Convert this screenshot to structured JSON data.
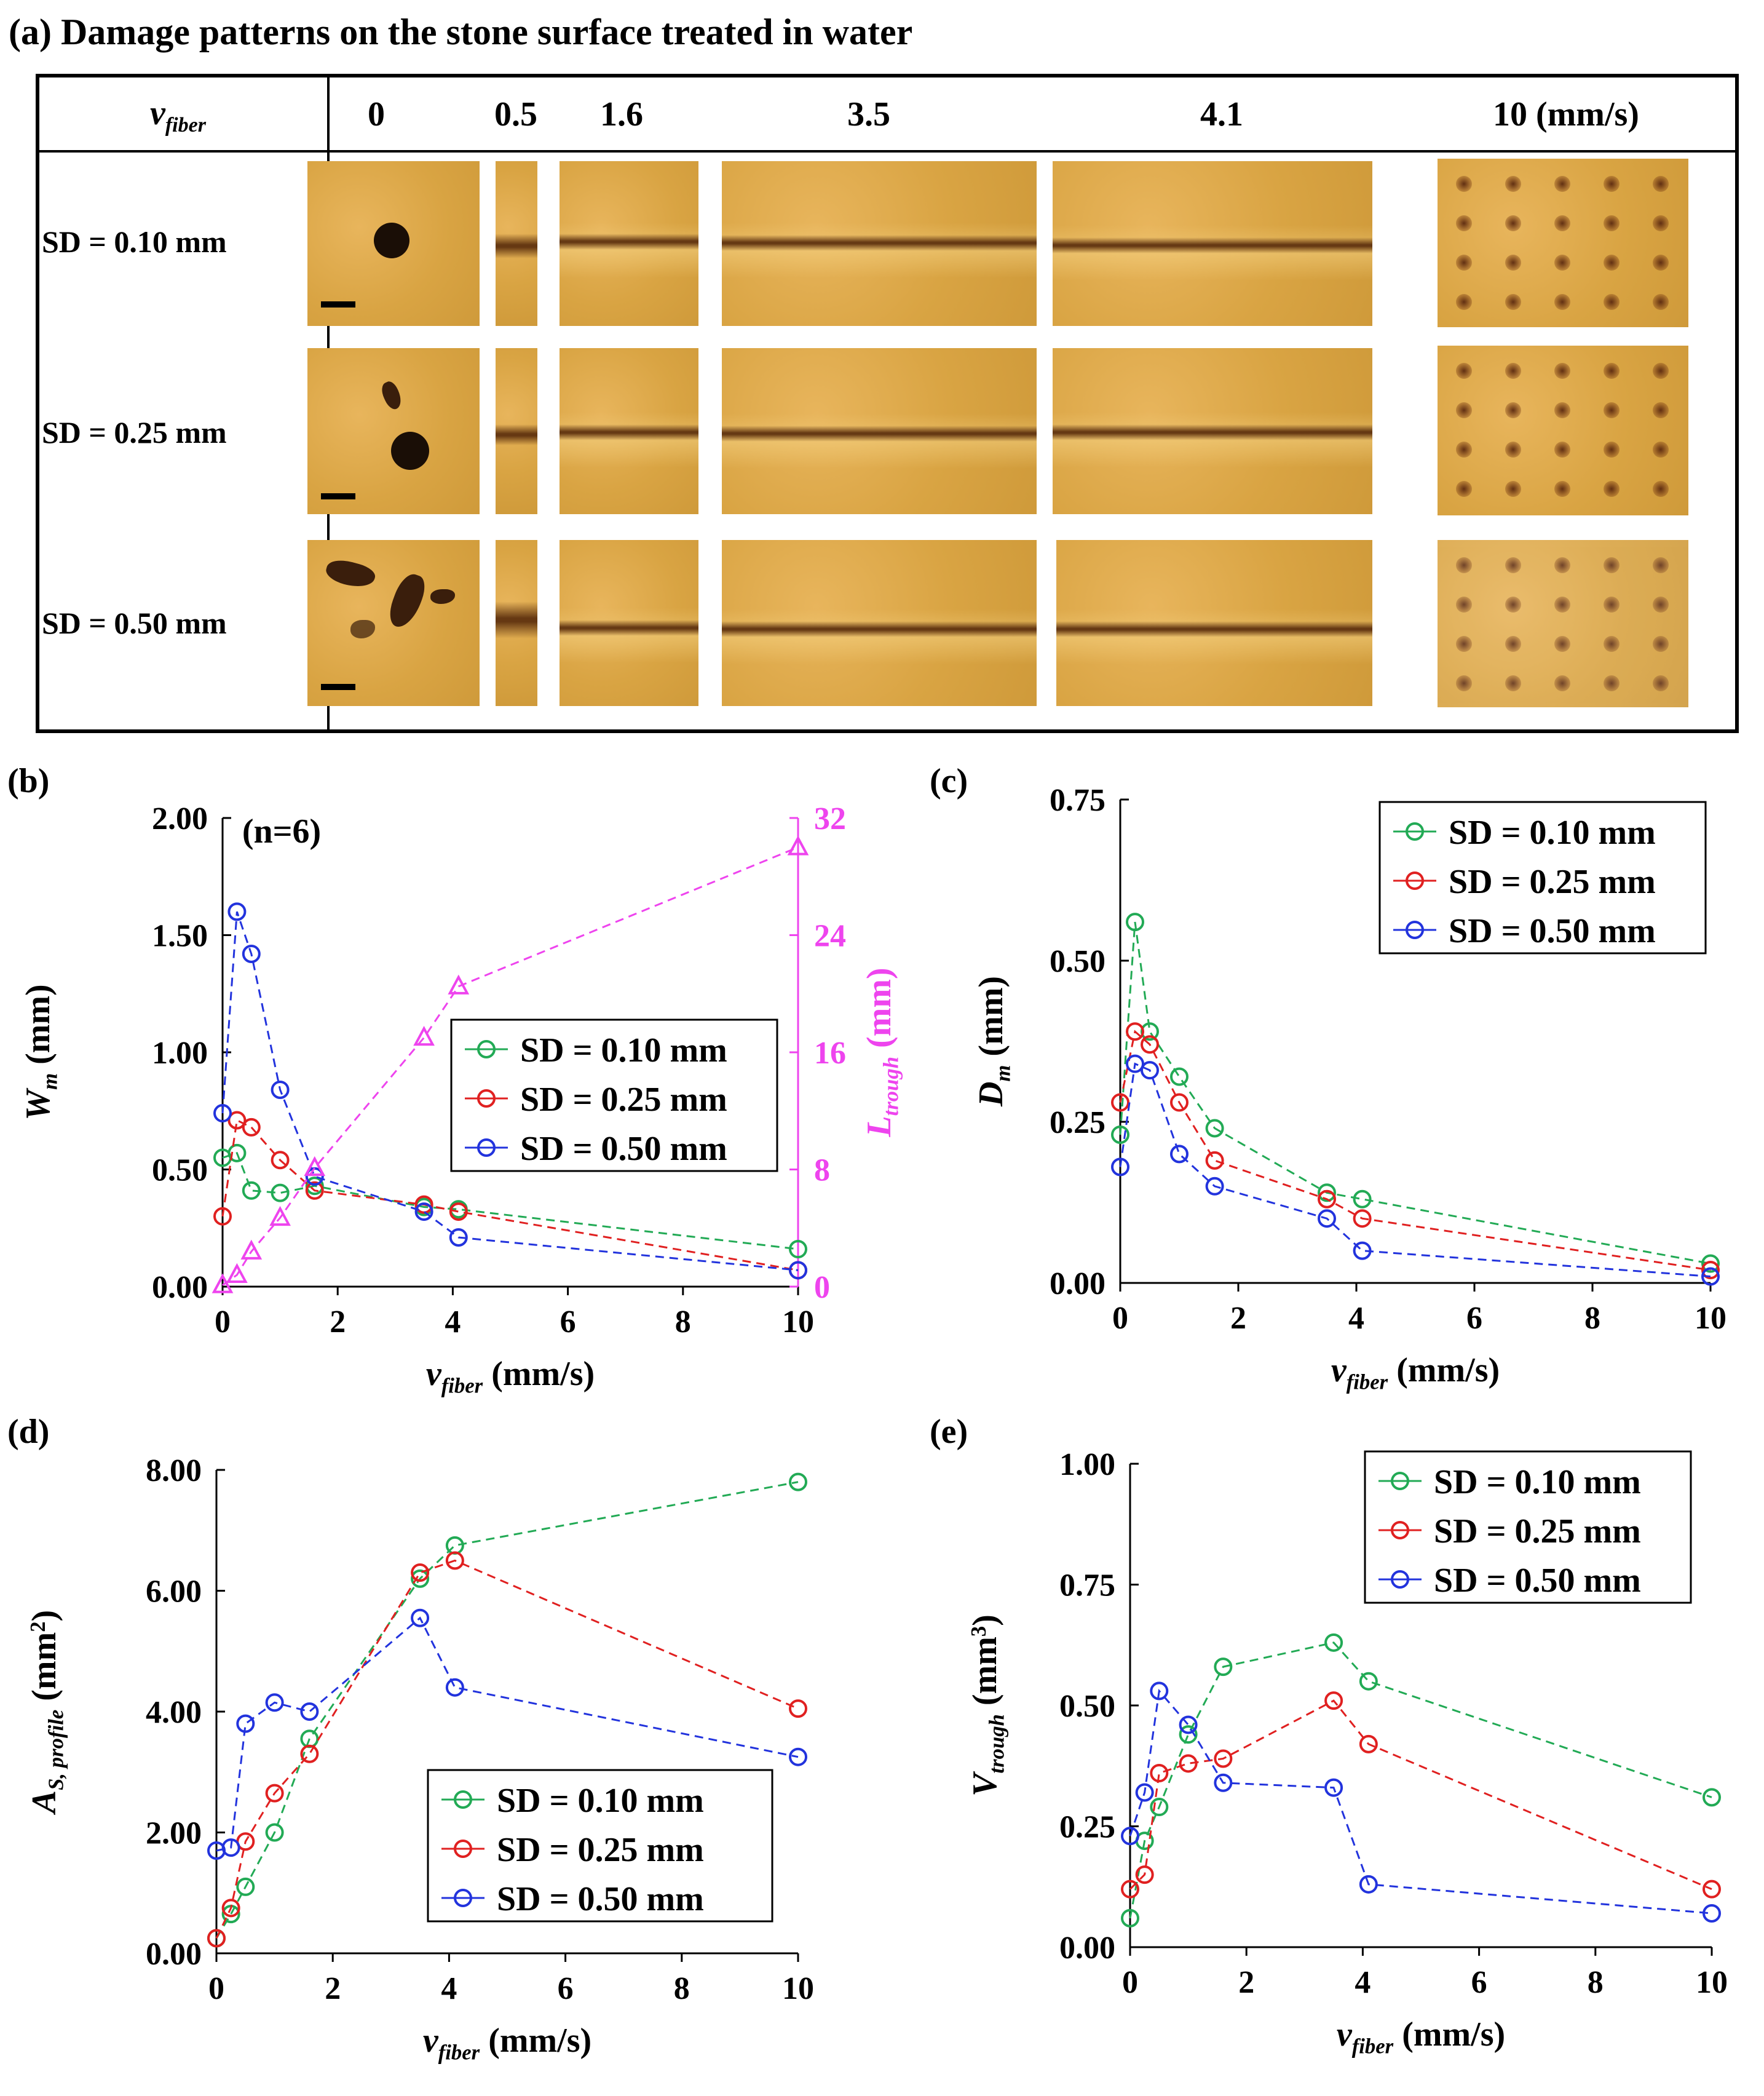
{
  "panel_a": {
    "title": "(a) Damage patterns on the stone surface treated in water",
    "col_header_symbol": "v",
    "col_header_sub": "fiber",
    "columns": [
      "0",
      "0.5",
      "1.6",
      "3.5",
      "4.1",
      "10 (mm/s)"
    ],
    "rows": [
      "SD = 0.10 mm",
      "SD = 0.25 mm",
      "SD = 0.50 mm"
    ]
  },
  "colors": {
    "green": "#22aa55",
    "red": "#e02020",
    "blue": "#2233dd",
    "magenta": "#ee44ee"
  },
  "chart_data": [
    {
      "panel": "(b)",
      "type": "line",
      "annotation": "(n=6)",
      "xlabel": "v",
      "xlabel_sub": "fiber",
      "xlabel_unit": " (mm/s)",
      "ylabel": "W",
      "ylabel_sub": "m",
      "ylabel_unit": " (mm)",
      "y2label": "L",
      "y2label_sub": "trough",
      "y2label_unit": " (mm)",
      "xlim": [
        0,
        10
      ],
      "ylim": [
        0,
        2
      ],
      "y2lim": [
        0,
        32
      ],
      "xticks": [
        "0",
        "2",
        "4",
        "6",
        "8",
        "10"
      ],
      "yticks": [
        "0.00",
        "0.50",
        "1.00",
        "1.50",
        "2.00"
      ],
      "y2ticks": [
        "0",
        "8",
        "16",
        "24",
        "32"
      ],
      "legend": [
        "SD = 0.10 mm",
        "SD = 0.25 mm",
        "SD = 0.50 mm"
      ],
      "x": [
        0,
        0.25,
        0.5,
        1,
        1.6,
        3.5,
        4.1,
        10
      ],
      "series": [
        {
          "name": "SD = 0.10 mm",
          "color": "green",
          "values": [
            0.55,
            0.57,
            0.41,
            0.4,
            0.43,
            0.34,
            0.33,
            0.16
          ]
        },
        {
          "name": "SD = 0.25 mm",
          "color": "red",
          "values": [
            0.3,
            0.71,
            0.68,
            0.54,
            0.41,
            0.35,
            0.32,
            0.07
          ]
        },
        {
          "name": "SD = 0.50 mm",
          "color": "blue",
          "values": [
            0.74,
            1.6,
            1.42,
            0.84,
            0.47,
            0.32,
            0.21,
            0.07
          ]
        }
      ],
      "series_right": {
        "name": "L trough",
        "color": "magenta",
        "marker": "triangle",
        "values": [
          0.1,
          0.8,
          2.4,
          4.7,
          8.1,
          17.0,
          20.5,
          30.0
        ]
      }
    },
    {
      "panel": "(c)",
      "type": "line",
      "xlabel": "v",
      "xlabel_sub": "fiber",
      "xlabel_unit": " (mm/s)",
      "ylabel": "D",
      "ylabel_sub": "m",
      "ylabel_unit": " (mm)",
      "xlim": [
        0,
        10
      ],
      "ylim": [
        0,
        0.75
      ],
      "xticks": [
        "0",
        "2",
        "4",
        "6",
        "8",
        "10"
      ],
      "yticks": [
        "0.00",
        "0.25",
        "0.50",
        "0.75"
      ],
      "legend": [
        "SD = 0.10 mm",
        "SD = 0.25 mm",
        "SD = 0.50 mm"
      ],
      "x": [
        0,
        0.25,
        0.5,
        1,
        1.6,
        3.5,
        4.1,
        10
      ],
      "series": [
        {
          "name": "SD = 0.10 mm",
          "color": "green",
          "values": [
            0.23,
            0.56,
            0.39,
            0.32,
            0.24,
            0.14,
            0.13,
            0.03
          ]
        },
        {
          "name": "SD = 0.25 mm",
          "color": "red",
          "values": [
            0.28,
            0.39,
            0.37,
            0.28,
            0.19,
            0.13,
            0.1,
            0.02
          ]
        },
        {
          "name": "SD = 0.50 mm",
          "color": "blue",
          "values": [
            0.18,
            0.34,
            0.33,
            0.2,
            0.15,
            0.1,
            0.05,
            0.01
          ]
        }
      ]
    },
    {
      "panel": "(d)",
      "type": "line",
      "xlabel": "v",
      "xlabel_sub": "fiber",
      "xlabel_unit": " (mm/s)",
      "ylabel": "A",
      "ylabel_sub": "S, profile",
      "ylabel_unit": " (mm",
      "ylabel_sup": "2",
      "ylabel_close": ")",
      "xlim": [
        0,
        10
      ],
      "ylim": [
        0,
        8
      ],
      "xticks": [
        "0",
        "2",
        "4",
        "6",
        "8",
        "10"
      ],
      "yticks": [
        "0.00",
        "2.00",
        "4.00",
        "6.00",
        "8.00"
      ],
      "legend": [
        "SD = 0.10 mm",
        "SD = 0.25 mm",
        "SD = 0.50 mm"
      ],
      "x": [
        0,
        0.25,
        0.5,
        1,
        1.6,
        3.5,
        4.1,
        10
      ],
      "series": [
        {
          "name": "SD = 0.10 mm",
          "color": "green",
          "values": [
            0.25,
            0.65,
            1.1,
            2.0,
            3.55,
            6.2,
            6.75,
            7.8
          ]
        },
        {
          "name": "SD = 0.25 mm",
          "color": "red",
          "values": [
            0.25,
            0.75,
            1.85,
            2.65,
            3.3,
            6.3,
            6.5,
            4.05
          ]
        },
        {
          "name": "SD = 0.50 mm",
          "color": "blue",
          "values": [
            1.7,
            1.75,
            3.8,
            4.15,
            4.0,
            5.55,
            4.4,
            3.25
          ]
        }
      ]
    },
    {
      "panel": "(e)",
      "type": "line",
      "xlabel": "v",
      "xlabel_sub": "fiber",
      "xlabel_unit": " (mm/s)",
      "ylabel": "V",
      "ylabel_sub": "trough",
      "ylabel_unit": " (mm",
      "ylabel_sup": "3",
      "ylabel_close": ")",
      "xlim": [
        0,
        10
      ],
      "ylim": [
        0,
        1
      ],
      "xticks": [
        "0",
        "2",
        "4",
        "6",
        "8",
        "10"
      ],
      "yticks": [
        "0.00",
        "0.25",
        "0.50",
        "0.75",
        "1.00"
      ],
      "legend": [
        "SD = 0.10 mm",
        "SD = 0.25 mm",
        "SD = 0.50 mm"
      ],
      "x": [
        0,
        0.25,
        0.5,
        1,
        1.6,
        3.5,
        4.1,
        10
      ],
      "series": [
        {
          "name": "SD = 0.10 mm",
          "color": "green",
          "values": [
            0.06,
            0.22,
            0.29,
            0.44,
            0.58,
            0.63,
            0.55,
            0.31
          ]
        },
        {
          "name": "SD = 0.25 mm",
          "color": "red",
          "values": [
            0.12,
            0.15,
            0.36,
            0.38,
            0.39,
            0.51,
            0.42,
            0.12
          ]
        },
        {
          "name": "SD = 0.50 mm",
          "color": "blue",
          "values": [
            0.23,
            0.32,
            0.53,
            0.46,
            0.34,
            0.33,
            0.13,
            0.07
          ]
        }
      ]
    }
  ]
}
